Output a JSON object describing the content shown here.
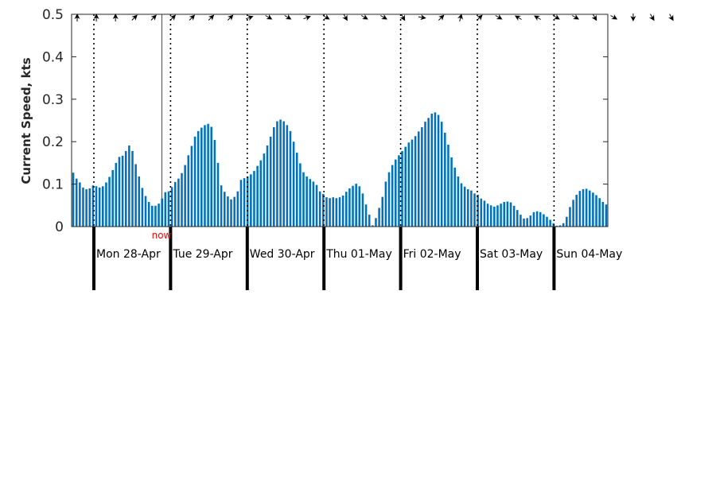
{
  "chart_data": {
    "type": "bar",
    "title": "",
    "xlabel": "",
    "ylabel": "Current Speed, kts",
    "ylim": [
      0,
      0.5
    ],
    "yticks": [
      "0",
      "0.1",
      "0.2",
      "0.3",
      "0.4",
      "0.5"
    ],
    "grid": false,
    "bar_color": "#0072bd",
    "now_label": "now",
    "now_color": "#ff0000",
    "days": [
      {
        "label": "Mon 28-Apr"
      },
      {
        "label": "Tue 29-Apr"
      },
      {
        "label": "Wed 30-Apr"
      },
      {
        "label": "Thu 01-May"
      },
      {
        "label": "Fri 02-May"
      },
      {
        "label": "Sat 03-May"
      },
      {
        "label": "Sun 04-May"
      }
    ],
    "series": [
      {
        "values": [
          0.127,
          0.113,
          0.104,
          0.092,
          0.088,
          0.09,
          0.097,
          0.095,
          0.092,
          0.095,
          0.104,
          0.117,
          0.133,
          0.15,
          0.164,
          0.167,
          0.178,
          0.191,
          0.178,
          0.147,
          0.118,
          0.091,
          0.072,
          0.058,
          0.049,
          0.049,
          0.054,
          0.066,
          0.081,
          0.083,
          0.093,
          0.105,
          0.113,
          0.126,
          0.145,
          0.168,
          0.19,
          0.212,
          0.225,
          0.233,
          0.239,
          0.242,
          0.235,
          0.204,
          0.15,
          0.097,
          0.082,
          0.071,
          0.064,
          0.07,
          0.083,
          0.11,
          0.114,
          0.118,
          0.123,
          0.131,
          0.143,
          0.156,
          0.172,
          0.191,
          0.212,
          0.234,
          0.248,
          0.252,
          0.248,
          0.239,
          0.225,
          0.2,
          0.174,
          0.149,
          0.128,
          0.118,
          0.112,
          0.106,
          0.098,
          0.083,
          0.077,
          0.069,
          0.067,
          0.069,
          0.067,
          0.069,
          0.073,
          0.082,
          0.09,
          0.096,
          0.101,
          0.095,
          0.078,
          0.052,
          0.028,
          0.003,
          0.02,
          0.044,
          0.07,
          0.106,
          0.128,
          0.145,
          0.158,
          0.168,
          0.178,
          0.188,
          0.198,
          0.205,
          0.213,
          0.224,
          0.234,
          0.247,
          0.256,
          0.266,
          0.269,
          0.263,
          0.247,
          0.221,
          0.193,
          0.163,
          0.139,
          0.118,
          0.102,
          0.094,
          0.088,
          0.085,
          0.078,
          0.075,
          0.066,
          0.061,
          0.054,
          0.05,
          0.047,
          0.05,
          0.054,
          0.058,
          0.059,
          0.057,
          0.049,
          0.039,
          0.028,
          0.019,
          0.02,
          0.026,
          0.034,
          0.036,
          0.034,
          0.029,
          0.023,
          0.016,
          0.008,
          0.002,
          0.003,
          0.008,
          0.023,
          0.046,
          0.063,
          0.075,
          0.084,
          0.088,
          0.089,
          0.085,
          0.08,
          0.074,
          0.067,
          0.058,
          0.052
        ]
      }
    ],
    "direction_arrows_deg": [
      0,
      0,
      0,
      45,
      45,
      45,
      45,
      45,
      45,
      70,
      120,
      120,
      70,
      120,
      150,
      120,
      120,
      150,
      100,
      45,
      15,
      45,
      120,
      300,
      300,
      120,
      120,
      150,
      120,
      180,
      150,
      150
    ]
  }
}
